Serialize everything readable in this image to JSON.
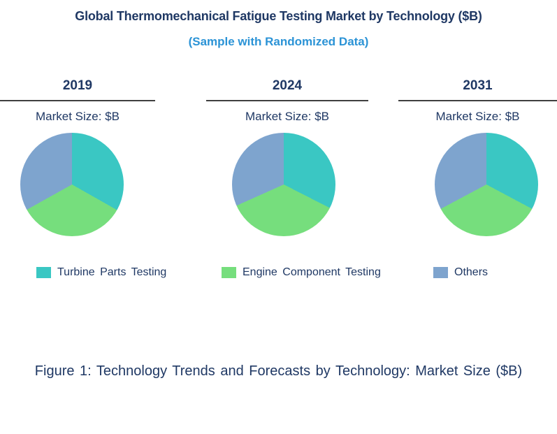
{
  "header": {
    "title": "Global Thermomechanical Fatigue Testing Market by Technology ($B)",
    "subtitle": "(Sample with Randomized Data)",
    "title_color": "#1F3864",
    "subtitle_color": "#2B93D6"
  },
  "columns": [
    {
      "year": "2019",
      "metric_label": "Market Size: $B"
    },
    {
      "year": "2024",
      "metric_label": "Market Size: $B"
    },
    {
      "year": "2031",
      "metric_label": "Market Size: $B"
    }
  ],
  "legend": [
    {
      "label": "Turbine Parts Testing",
      "color": "#3AC7C3"
    },
    {
      "label": "Engine Component Testing",
      "color": "#76DE7D"
    },
    {
      "label": "Others",
      "color": "#7EA4CE"
    }
  ],
  "caption": "Figure 1: Technology Trends and Forecasts by Technology: Market Size ($B)",
  "text_color": "#1F3864",
  "divider_color": "#3F3F3F",
  "chart_data": [
    {
      "type": "pie",
      "title": "2019",
      "value_label": "Market Size: $B",
      "categories": [
        "Turbine Parts Testing",
        "Engine Component Testing",
        "Others"
      ],
      "values_pct": [
        33.2,
        33.7,
        33.1
      ],
      "colors": [
        "#3AC7C3",
        "#76DE7D",
        "#7EA4CE"
      ],
      "start_angle_deg": 0,
      "direction": "clockwise",
      "legend_position": "bottom",
      "note": "No numeric labels shown; shares estimated from slice angles (~119.6°, ~121.3°, ~119.1°)."
    },
    {
      "type": "pie",
      "title": "2024",
      "value_label": "Market Size: $B",
      "categories": [
        "Turbine Parts Testing",
        "Engine Component Testing",
        "Others"
      ],
      "values_pct": [
        32.5,
        35.8,
        31.7
      ],
      "colors": [
        "#3AC7C3",
        "#76DE7D",
        "#7EA4CE"
      ],
      "start_angle_deg": 0,
      "direction": "clockwise",
      "legend_position": "bottom",
      "note": "No numeric labels shown; shares estimated from slice angles (~117°, ~129°, ~114°)."
    },
    {
      "type": "pie",
      "title": "2031",
      "value_label": "Market Size: $B",
      "categories": [
        "Turbine Parts Testing",
        "Engine Component Testing",
        "Others"
      ],
      "values_pct": [
        32.8,
        34.4,
        32.8
      ],
      "colors": [
        "#3AC7C3",
        "#76DE7D",
        "#7EA4CE"
      ],
      "start_angle_deg": 0,
      "direction": "clockwise",
      "legend_position": "bottom",
      "note": "No numeric labels shown; shares estimated from slice angles (~118°, ~124°, ~118°)."
    }
  ]
}
